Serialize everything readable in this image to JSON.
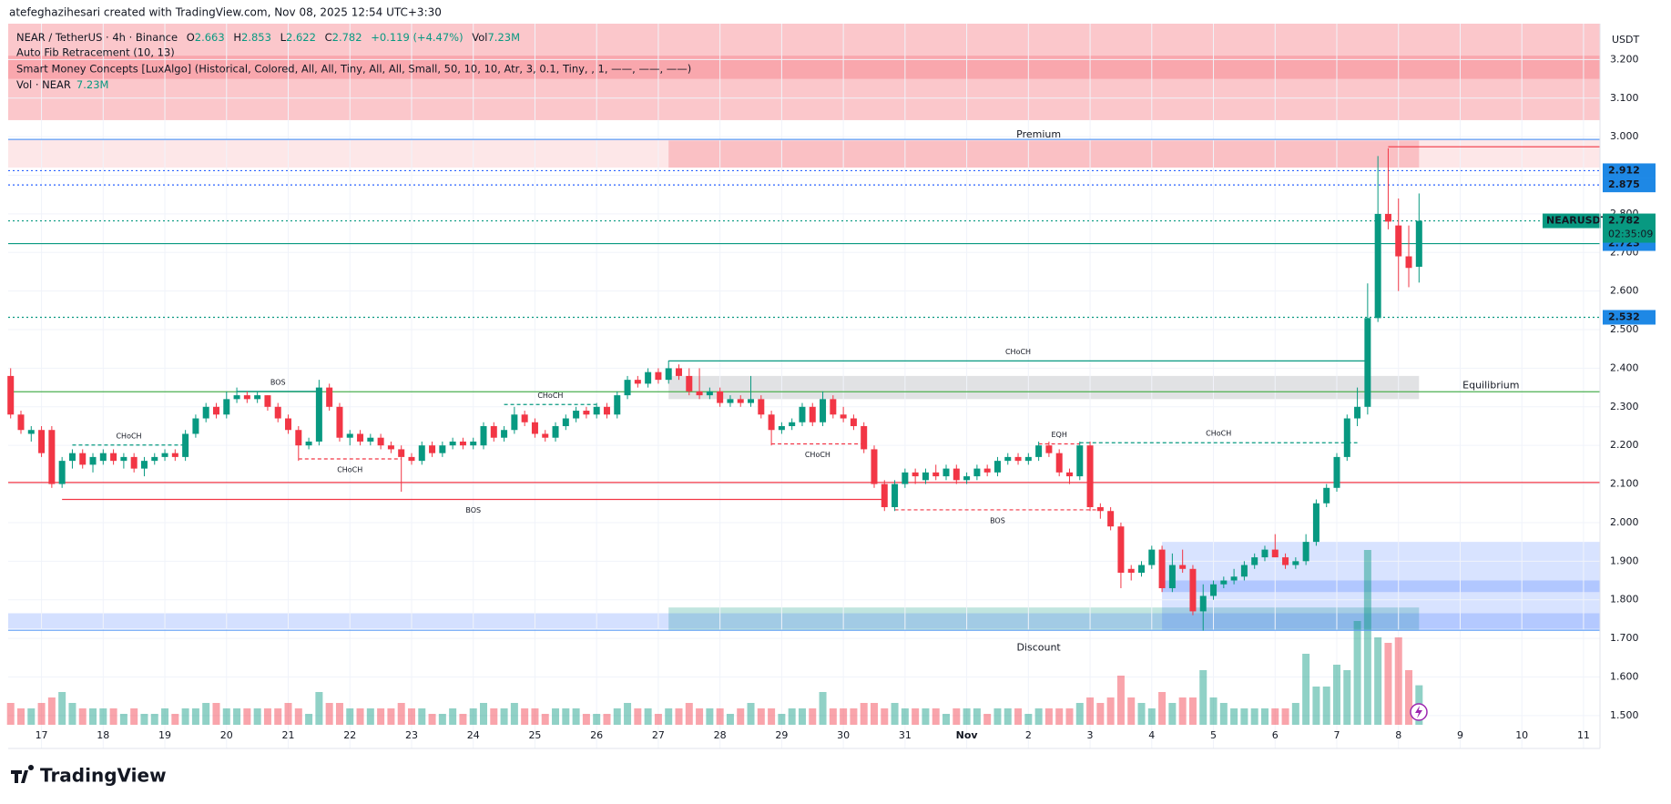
{
  "header": {
    "credit": "atefeghazihesari created with TradingView.com, Nov 08, 2025 12:54 UTC+3:30"
  },
  "legend": {
    "symbol": "NEAR / TetherUS · 4h · Binance",
    "ohlc_keys": [
      "O",
      "H",
      "L",
      "C"
    ],
    "change": "+0.119 (+4.47%)",
    "vol_key": "Vol",
    "vol": "7.23M",
    "indicators": [
      "Auto Fib Retracement (10, 13)",
      "Smart Money Concepts [LuxAlgo] (Historical, Colored, All, All, Tiny, All, All, Small, 50, 10, 10, Atr, 3, 0.1, Tiny, , 1, ——, ——, ——)"
    ],
    "volume_name": "Vol · NEAR"
  },
  "footer": {
    "brand": "TradingView"
  },
  "chart_data": {
    "type": "candlestick",
    "currency": "USDT",
    "up_color": "#089981",
    "down_color": "#f23645",
    "volume_up_color": "rgba(8,153,129,0.45)",
    "volume_down_color": "rgba(242,54,69,0.45)",
    "xlim": [
      -0.24,
      154.6
    ],
    "xticks": [
      {
        "value": 3,
        "label": "17"
      },
      {
        "value": 9,
        "label": "18"
      },
      {
        "value": 15,
        "label": "19"
      },
      {
        "value": 21,
        "label": "20"
      },
      {
        "value": 27,
        "label": "21"
      },
      {
        "value": 33,
        "label": "22"
      },
      {
        "value": 39,
        "label": "23"
      },
      {
        "value": 45,
        "label": "24"
      },
      {
        "value": 51,
        "label": "25"
      },
      {
        "value": 57,
        "label": "26"
      },
      {
        "value": 63,
        "label": "27"
      },
      {
        "value": 69,
        "label": "28"
      },
      {
        "value": 75,
        "label": "29"
      },
      {
        "value": 81,
        "label": "30"
      },
      {
        "value": 87,
        "label": "31"
      },
      {
        "value": 93,
        "label": "Nov"
      },
      {
        "value": 99,
        "label": "2"
      },
      {
        "value": 105,
        "label": "3"
      },
      {
        "value": 111,
        "label": "4"
      },
      {
        "value": 117,
        "label": "5"
      },
      {
        "value": 123,
        "label": "6"
      },
      {
        "value": 129,
        "label": "7"
      },
      {
        "value": 135,
        "label": "8"
      },
      {
        "value": 141,
        "label": "9"
      },
      {
        "value": 147,
        "label": "10"
      },
      {
        "value": 153,
        "label": "11"
      }
    ],
    "ylim": [
      1.476,
      3.293
    ],
    "yticks": [
      {
        "value": 1.5,
        "label": "1.500"
      },
      {
        "value": 1.6,
        "label": "1.600"
      },
      {
        "value": 1.7,
        "label": "1.700"
      },
      {
        "value": 1.8,
        "label": "1.800"
      },
      {
        "value": 1.9,
        "label": "1.900"
      },
      {
        "value": 2.0,
        "label": "2.000"
      },
      {
        "value": 2.1,
        "label": "2.100"
      },
      {
        "value": 2.2,
        "label": "2.200"
      },
      {
        "value": 2.3,
        "label": "2.300"
      },
      {
        "value": 2.4,
        "label": "2.400"
      },
      {
        "value": 2.5,
        "label": "2.500"
      },
      {
        "value": 2.6,
        "label": "2.600"
      },
      {
        "value": 2.7,
        "label": "2.700"
      },
      {
        "value": 2.8,
        "label": "2.800"
      },
      {
        "value": 2.9,
        "label": "2.900"
      },
      {
        "value": 3.0,
        "label": "3.000"
      },
      {
        "value": 3.1,
        "label": "3.100"
      },
      {
        "value": 3.2,
        "label": "3.200"
      }
    ],
    "ohlc": [
      [
        2.38,
        2.4,
        2.27,
        2.28
      ],
      [
        2.28,
        2.29,
        2.23,
        2.24
      ],
      [
        2.23,
        2.25,
        2.21,
        2.24
      ],
      [
        2.24,
        2.25,
        2.17,
        2.18
      ],
      [
        2.24,
        2.25,
        2.09,
        2.1
      ],
      [
        2.1,
        2.17,
        2.09,
        2.16
      ],
      [
        2.16,
        2.19,
        2.14,
        2.18
      ],
      [
        2.18,
        2.19,
        2.14,
        2.15
      ],
      [
        2.15,
        2.18,
        2.13,
        2.17
      ],
      [
        2.16,
        2.19,
        2.15,
        2.18
      ],
      [
        2.18,
        2.19,
        2.15,
        2.16
      ],
      [
        2.16,
        2.18,
        2.14,
        2.17
      ],
      [
        2.17,
        2.18,
        2.13,
        2.14
      ],
      [
        2.14,
        2.17,
        2.12,
        2.16
      ],
      [
        2.16,
        2.18,
        2.15,
        2.17
      ],
      [
        2.17,
        2.19,
        2.16,
        2.18
      ],
      [
        2.18,
        2.19,
        2.16,
        2.17
      ],
      [
        2.17,
        2.24,
        2.16,
        2.23
      ],
      [
        2.23,
        2.28,
        2.22,
        2.27
      ],
      [
        2.27,
        2.31,
        2.26,
        2.3
      ],
      [
        2.3,
        2.31,
        2.27,
        2.28
      ],
      [
        2.28,
        2.34,
        2.27,
        2.32
      ],
      [
        2.32,
        2.35,
        2.31,
        2.33
      ],
      [
        2.33,
        2.34,
        2.31,
        2.32
      ],
      [
        2.32,
        2.34,
        2.31,
        2.33
      ],
      [
        2.33,
        2.33,
        2.29,
        2.3
      ],
      [
        2.3,
        2.31,
        2.26,
        2.27
      ],
      [
        2.27,
        2.28,
        2.23,
        2.24
      ],
      [
        2.24,
        2.25,
        2.16,
        2.2
      ],
      [
        2.2,
        2.22,
        2.19,
        2.21
      ],
      [
        2.21,
        2.37,
        2.2,
        2.35
      ],
      [
        2.35,
        2.36,
        2.29,
        2.3
      ],
      [
        2.3,
        2.31,
        2.21,
        2.22
      ],
      [
        2.22,
        2.24,
        2.2,
        2.23
      ],
      [
        2.23,
        2.24,
        2.2,
        2.21
      ],
      [
        2.21,
        2.23,
        2.2,
        2.22
      ],
      [
        2.22,
        2.23,
        2.19,
        2.2
      ],
      [
        2.2,
        2.21,
        2.18,
        2.19
      ],
      [
        2.19,
        2.2,
        2.08,
        2.17
      ],
      [
        2.17,
        2.18,
        2.15,
        2.16
      ],
      [
        2.16,
        2.21,
        2.15,
        2.2
      ],
      [
        2.2,
        2.21,
        2.17,
        2.18
      ],
      [
        2.18,
        2.21,
        2.17,
        2.2
      ],
      [
        2.2,
        2.22,
        2.19,
        2.21
      ],
      [
        2.21,
        2.22,
        2.19,
        2.2
      ],
      [
        2.2,
        2.22,
        2.19,
        2.21
      ],
      [
        2.2,
        2.26,
        2.19,
        2.25
      ],
      [
        2.25,
        2.26,
        2.21,
        2.22
      ],
      [
        2.22,
        2.25,
        2.21,
        2.24
      ],
      [
        2.24,
        2.3,
        2.23,
        2.28
      ],
      [
        2.28,
        2.29,
        2.25,
        2.26
      ],
      [
        2.26,
        2.27,
        2.22,
        2.23
      ],
      [
        2.23,
        2.24,
        2.21,
        2.22
      ],
      [
        2.22,
        2.26,
        2.21,
        2.25
      ],
      [
        2.25,
        2.28,
        2.24,
        2.27
      ],
      [
        2.27,
        2.3,
        2.26,
        2.29
      ],
      [
        2.29,
        2.3,
        2.27,
        2.28
      ],
      [
        2.28,
        2.31,
        2.27,
        2.3
      ],
      [
        2.3,
        2.31,
        2.27,
        2.28
      ],
      [
        2.28,
        2.34,
        2.27,
        2.33
      ],
      [
        2.33,
        2.38,
        2.32,
        2.37
      ],
      [
        2.37,
        2.38,
        2.35,
        2.36
      ],
      [
        2.36,
        2.4,
        2.35,
        2.39
      ],
      [
        2.39,
        2.4,
        2.36,
        2.37
      ],
      [
        2.37,
        2.42,
        2.36,
        2.4
      ],
      [
        2.4,
        2.41,
        2.37,
        2.38
      ],
      [
        2.38,
        2.4,
        2.33,
        2.34
      ],
      [
        2.34,
        2.4,
        2.32,
        2.33
      ],
      [
        2.33,
        2.35,
        2.32,
        2.34
      ],
      [
        2.34,
        2.35,
        2.3,
        2.31
      ],
      [
        2.31,
        2.33,
        2.3,
        2.32
      ],
      [
        2.32,
        2.33,
        2.3,
        2.31
      ],
      [
        2.31,
        2.38,
        2.3,
        2.32
      ],
      [
        2.32,
        2.33,
        2.27,
        2.28
      ],
      [
        2.28,
        2.29,
        2.2,
        2.24
      ],
      [
        2.24,
        2.26,
        2.23,
        2.25
      ],
      [
        2.25,
        2.27,
        2.24,
        2.26
      ],
      [
        2.26,
        2.31,
        2.25,
        2.3
      ],
      [
        2.3,
        2.31,
        2.25,
        2.26
      ],
      [
        2.26,
        2.34,
        2.25,
        2.32
      ],
      [
        2.32,
        2.33,
        2.27,
        2.28
      ],
      [
        2.28,
        2.3,
        2.26,
        2.27
      ],
      [
        2.27,
        2.28,
        2.24,
        2.25
      ],
      [
        2.25,
        2.26,
        2.18,
        2.19
      ],
      [
        2.19,
        2.2,
        2.09,
        2.1
      ],
      [
        2.1,
        2.11,
        2.03,
        2.04
      ],
      [
        2.04,
        2.11,
        2.03,
        2.1
      ],
      [
        2.1,
        2.14,
        2.09,
        2.13
      ],
      [
        2.13,
        2.14,
        2.1,
        2.12
      ],
      [
        2.11,
        2.14,
        2.1,
        2.13
      ],
      [
        2.13,
        2.15,
        2.11,
        2.12
      ],
      [
        2.12,
        2.15,
        2.11,
        2.14
      ],
      [
        2.14,
        2.15,
        2.1,
        2.11
      ],
      [
        2.11,
        2.13,
        2.1,
        2.12
      ],
      [
        2.12,
        2.15,
        2.11,
        2.14
      ],
      [
        2.14,
        2.15,
        2.12,
        2.13
      ],
      [
        2.13,
        2.17,
        2.12,
        2.16
      ],
      [
        2.16,
        2.18,
        2.15,
        2.17
      ],
      [
        2.17,
        2.18,
        2.15,
        2.16
      ],
      [
        2.16,
        2.18,
        2.15,
        2.17
      ],
      [
        2.17,
        2.21,
        2.16,
        2.2
      ],
      [
        2.2,
        2.21,
        2.17,
        2.18
      ],
      [
        2.18,
        2.19,
        2.12,
        2.13
      ],
      [
        2.13,
        2.14,
        2.1,
        2.12
      ],
      [
        2.12,
        2.21,
        2.11,
        2.2
      ],
      [
        2.2,
        2.21,
        2.03,
        2.04
      ],
      [
        2.04,
        2.05,
        2.01,
        2.03
      ],
      [
        2.03,
        2.04,
        1.98,
        1.99
      ],
      [
        1.99,
        2.0,
        1.83,
        1.87
      ],
      [
        1.88,
        1.89,
        1.85,
        1.87
      ],
      [
        1.87,
        1.9,
        1.86,
        1.89
      ],
      [
        1.89,
        1.94,
        1.88,
        1.93
      ],
      [
        1.93,
        1.94,
        1.82,
        1.83
      ],
      [
        1.83,
        1.92,
        1.82,
        1.89
      ],
      [
        1.89,
        1.93,
        1.87,
        1.88
      ],
      [
        1.88,
        1.89,
        1.76,
        1.77
      ],
      [
        1.77,
        1.84,
        1.72,
        1.81
      ],
      [
        1.81,
        1.85,
        1.8,
        1.84
      ],
      [
        1.84,
        1.86,
        1.83,
        1.85
      ],
      [
        1.85,
        1.88,
        1.84,
        1.86
      ],
      [
        1.86,
        1.9,
        1.85,
        1.89
      ],
      [
        1.89,
        1.92,
        1.88,
        1.91
      ],
      [
        1.91,
        1.94,
        1.9,
        1.93
      ],
      [
        1.93,
        1.97,
        1.91,
        1.91
      ],
      [
        1.91,
        1.92,
        1.88,
        1.89
      ],
      [
        1.89,
        1.91,
        1.88,
        1.9
      ],
      [
        1.9,
        1.97,
        1.89,
        1.95
      ],
      [
        1.95,
        2.06,
        1.94,
        2.05
      ],
      [
        2.05,
        2.1,
        2.04,
        2.09
      ],
      [
        2.09,
        2.18,
        2.08,
        2.17
      ],
      [
        2.17,
        2.28,
        2.16,
        2.27
      ],
      [
        2.27,
        2.35,
        2.25,
        2.3
      ],
      [
        2.3,
        2.62,
        2.28,
        2.53
      ],
      [
        2.53,
        2.95,
        2.52,
        2.8
      ],
      [
        2.8,
        2.97,
        2.76,
        2.78
      ],
      [
        2.77,
        2.84,
        2.6,
        2.69
      ],
      [
        2.69,
        2.77,
        2.61,
        2.66
      ],
      [
        2.663,
        2.853,
        2.622,
        2.782
      ]
    ],
    "volume": [
      4,
      3,
      3,
      4,
      5,
      6,
      4,
      3,
      3,
      3,
      3,
      2,
      3,
      2,
      2,
      3,
      2,
      3,
      3,
      4,
      4,
      3,
      3,
      3,
      3,
      3,
      3,
      4,
      3,
      2,
      6,
      4,
      4,
      3,
      3,
      3,
      3,
      3,
      4,
      3,
      3,
      2,
      2,
      3,
      2,
      3,
      4,
      3,
      3,
      4,
      3,
      3,
      2,
      3,
      3,
      3,
      2,
      2,
      2,
      3,
      4,
      3,
      3,
      2,
      3,
      3,
      4,
      3,
      3,
      3,
      2,
      3,
      4,
      3,
      3,
      2,
      3,
      3,
      3,
      6,
      3,
      3,
      3,
      4,
      4,
      3,
      4,
      3,
      3,
      3,
      3,
      2,
      3,
      3,
      3,
      2,
      3,
      3,
      3,
      2,
      3,
      3,
      3,
      3,
      4,
      5,
      4,
      5,
      9,
      5,
      4,
      3,
      6,
      4,
      5,
      5,
      10,
      5,
      4,
      3,
      3,
      3,
      3,
      3,
      3,
      4,
      13,
      7,
      7,
      11,
      10,
      19,
      32,
      16,
      15,
      16,
      10,
      7.23
    ],
    "zones": [
      {
        "top": 3.293,
        "bottom": 3.043,
        "from": null,
        "to": null,
        "color": "rgba(242,54,69,0.28)"
      },
      {
        "top": 3.21,
        "bottom": 3.15,
        "from": null,
        "to": null,
        "color": "rgba(242,54,69,0.22)"
      },
      {
        "top": 2.993,
        "bottom": 2.92,
        "from": null,
        "to": null,
        "color": "rgba(242,54,69,0.12)"
      },
      {
        "top": 2.99,
        "bottom": 2.92,
        "from": 64,
        "to": 137,
        "color": "rgba(242,54,69,0.22)"
      },
      {
        "top": 2.38,
        "bottom": 2.32,
        "from": 64,
        "to": 137,
        "color": "rgba(120,123,134,0.22)"
      },
      {
        "top": 1.78,
        "bottom": 1.72,
        "from": 64,
        "to": 137,
        "color": "rgba(8,153,129,0.25)"
      },
      {
        "top": 1.95,
        "bottom": 1.72,
        "from": 112,
        "to": null,
        "color": "rgba(41,98,255,0.18)"
      },
      {
        "top": 1.85,
        "bottom": 1.82,
        "from": 112,
        "to": null,
        "color": "rgba(41,98,255,0.22)"
      },
      {
        "top": 1.765,
        "bottom": 1.725,
        "from": null,
        "to": null,
        "color": "rgba(41,98,255,0.2)"
      }
    ],
    "levels": [
      {
        "value": 2.993,
        "color": "#5b9cf6",
        "style": "solid",
        "tag": false
      },
      {
        "value": 2.912,
        "color": "#2962ff",
        "style": "dotted",
        "tag": true
      },
      {
        "value": 2.875,
        "color": "#2962ff",
        "style": "dotted",
        "tag": true
      },
      {
        "value": 2.782,
        "color": "#089981",
        "style": "dotted",
        "tag": false
      },
      {
        "value": 2.723,
        "color": "#089981",
        "style": "solid",
        "tag": true
      },
      {
        "value": 2.532,
        "color": "#089981",
        "style": "dotted",
        "tag": true
      },
      {
        "value": 2.339,
        "color": "#4caf50",
        "style": "solid",
        "tag": false
      },
      {
        "value": 2.104,
        "color": "#f23645",
        "style": "solid",
        "tag": false
      },
      {
        "value": 1.721,
        "color": "#5b9cf6",
        "style": "solid",
        "tag": false
      },
      {
        "value": 2.974,
        "color": "#f23645",
        "style": "solid",
        "tag": false,
        "from": 134
      }
    ],
    "tag_color": "#1e88e5",
    "price_tag": {
      "symbol": "NEARUSDT",
      "countdown": "02:35:09",
      "color": "#089981"
    },
    "structures": [
      {
        "text": "CHoCH",
        "level": 2.201,
        "from": 6,
        "to": 17,
        "color": "#089981",
        "dashed": true,
        "below": false
      },
      {
        "text": "BOS",
        "level": 2.34,
        "from": 22,
        "to": 30,
        "color": "#089981",
        "dashed": false,
        "below": false
      },
      {
        "text": "CHoCH",
        "level": 2.165,
        "from": 28,
        "to": 38,
        "color": "#f23645",
        "dashed": true,
        "below": true
      },
      {
        "text": "CHoCH",
        "level": 2.306,
        "from": 48,
        "to": 57,
        "color": "#089981",
        "dashed": true,
        "below": false
      },
      {
        "text": "CHoCH",
        "level": 2.204,
        "from": 74,
        "to": 83,
        "color": "#f23645",
        "dashed": true,
        "below": true
      },
      {
        "text": "BOS",
        "level": 2.06,
        "from": 5,
        "to": 85,
        "color": "#f23645",
        "dashed": false,
        "below": true
      },
      {
        "text": "BOS",
        "level": 2.033,
        "from": 86,
        "to": 106,
        "color": "#f23645",
        "dashed": true,
        "below": true
      },
      {
        "text": "EQH",
        "level": 2.204,
        "from": 100,
        "to": 104,
        "color": "#f23645",
        "dashed": true,
        "below": false
      },
      {
        "text": "CHoCH",
        "level": 2.207,
        "from": 104,
        "to": 131,
        "color": "#089981",
        "dashed": true,
        "below": false
      },
      {
        "text": "CHoCH",
        "level": 2.419,
        "from": 64,
        "to": 132,
        "color": "#089981",
        "dashed": false,
        "below": false
      }
    ],
    "annotations": [
      {
        "text": "Premium",
        "x": 100,
        "y": 3.005,
        "color": "#f23645"
      },
      {
        "text": "Equilibrium",
        "x": 144,
        "y": 2.355,
        "color": "#9598a1"
      },
      {
        "text": "Discount",
        "x": 100,
        "y": 1.675,
        "color": "#089981"
      }
    ]
  }
}
